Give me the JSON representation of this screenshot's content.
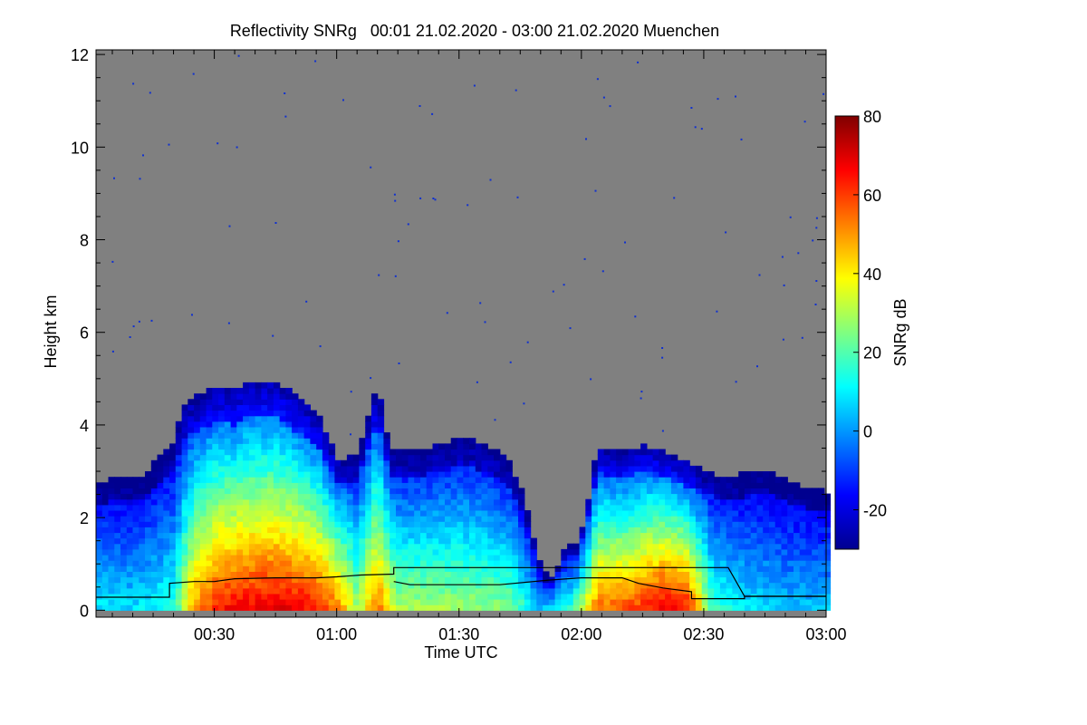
{
  "chart_data": {
    "type": "heatmap",
    "title": "Reflectivity SNRg   00:01 21.02.2020 - 03:00 21.02.2020 Muenchen",
    "xlabel": "Time UTC",
    "ylabel": "Height km",
    "x_range_minutes": [
      1,
      180
    ],
    "x_ticks": [
      {
        "minute": 30,
        "label": "00:30"
      },
      {
        "minute": 60,
        "label": "01:00"
      },
      {
        "minute": 90,
        "label": "01:30"
      },
      {
        "minute": 120,
        "label": "02:00"
      },
      {
        "minute": 150,
        "label": "02:30"
      },
      {
        "minute": 180,
        "label": "03:00"
      }
    ],
    "ylim": [
      -0.15,
      12.1
    ],
    "y_ticks": [
      0,
      2,
      4,
      6,
      8,
      10,
      12
    ],
    "background_color": "#808080",
    "colorbar": {
      "label": "SNRg dB",
      "range": [
        -30,
        80
      ],
      "ticks": [
        -20,
        0,
        20,
        40,
        60,
        80
      ],
      "colors": [
        "#00008f",
        "#0000ff",
        "#0080ff",
        "#00ffff",
        "#80ff80",
        "#ffff00",
        "#ff8000",
        "#ff0000",
        "#800000"
      ]
    },
    "echo_top_km": [
      [
        1,
        2.7
      ],
      [
        6,
        2.8
      ],
      [
        12,
        2.8
      ],
      [
        16,
        3.2
      ],
      [
        20,
        3.6
      ],
      [
        23,
        4.5
      ],
      [
        27,
        4.6
      ],
      [
        31,
        4.8
      ],
      [
        35,
        4.7
      ],
      [
        38,
        4.9
      ],
      [
        42,
        4.9
      ],
      [
        45,
        4.9
      ],
      [
        48,
        4.7
      ],
      [
        52,
        4.4
      ],
      [
        56,
        4.1
      ],
      [
        60,
        3.2
      ],
      [
        65,
        3.3
      ],
      [
        70,
        4.8
      ],
      [
        73,
        3.4
      ],
      [
        79,
        3.4
      ],
      [
        85,
        3.5
      ],
      [
        91,
        3.7
      ],
      [
        97,
        3.5
      ],
      [
        102,
        3.2
      ],
      [
        106,
        2.4
      ],
      [
        108,
        1.6
      ],
      [
        110,
        1.0
      ],
      [
        112,
        0.6
      ],
      [
        114,
        0.9
      ],
      [
        116,
        1.3
      ],
      [
        119,
        1.4
      ],
      [
        121,
        2.0
      ],
      [
        124,
        3.5
      ],
      [
        127,
        3.4
      ],
      [
        131,
        3.4
      ],
      [
        135,
        3.5
      ],
      [
        140,
        3.4
      ],
      [
        145,
        3.2
      ],
      [
        150,
        3.0
      ],
      [
        155,
        2.8
      ],
      [
        160,
        2.9
      ],
      [
        165,
        3.0
      ],
      [
        170,
        2.8
      ],
      [
        175,
        2.6
      ],
      [
        180,
        2.5
      ]
    ],
    "snr_core_dB": [
      [
        1,
        10
      ],
      [
        10,
        8
      ],
      [
        20,
        15
      ],
      [
        25,
        50
      ],
      [
        31,
        65
      ],
      [
        37,
        68
      ],
      [
        44,
        70
      ],
      [
        52,
        68
      ],
      [
        60,
        55
      ],
      [
        65,
        30
      ],
      [
        70,
        55
      ],
      [
        75,
        30
      ],
      [
        85,
        30
      ],
      [
        95,
        28
      ],
      [
        103,
        25
      ],
      [
        110,
        5
      ],
      [
        118,
        20
      ],
      [
        124,
        55
      ],
      [
        133,
        60
      ],
      [
        140,
        70
      ],
      [
        146,
        65
      ],
      [
        152,
        20
      ],
      [
        160,
        10
      ],
      [
        170,
        5
      ],
      [
        180,
        5
      ]
    ],
    "line_series_km": [
      [
        1,
        0.28
      ],
      [
        19,
        0.28
      ],
      [
        19,
        0.58
      ],
      [
        25,
        0.62
      ],
      [
        30,
        0.62
      ],
      [
        35,
        0.68
      ],
      [
        45,
        0.7
      ],
      [
        55,
        0.7
      ],
      [
        60,
        0.72
      ],
      [
        66,
        0.76
      ],
      [
        74,
        0.78
      ],
      [
        74,
        0.92
      ],
      [
        80,
        0.92
      ],
      [
        100,
        0.92
      ],
      [
        120,
        0.92
      ],
      [
        140,
        0.92
      ],
      [
        156,
        0.92
      ],
      [
        160,
        0.3
      ],
      [
        168,
        0.3
      ],
      [
        180,
        0.3
      ]
    ],
    "line_series2_km": [
      [
        74,
        0.62
      ],
      [
        78,
        0.55
      ],
      [
        84,
        0.55
      ],
      [
        100,
        0.55
      ],
      [
        112,
        0.65
      ],
      [
        120,
        0.7
      ],
      [
        130,
        0.7
      ],
      [
        134,
        0.58
      ],
      [
        140,
        0.48
      ],
      [
        147,
        0.4
      ],
      [
        147,
        0.25
      ],
      [
        160,
        0.25
      ],
      [
        160,
        0.3
      ],
      [
        180,
        0.3
      ]
    ]
  }
}
